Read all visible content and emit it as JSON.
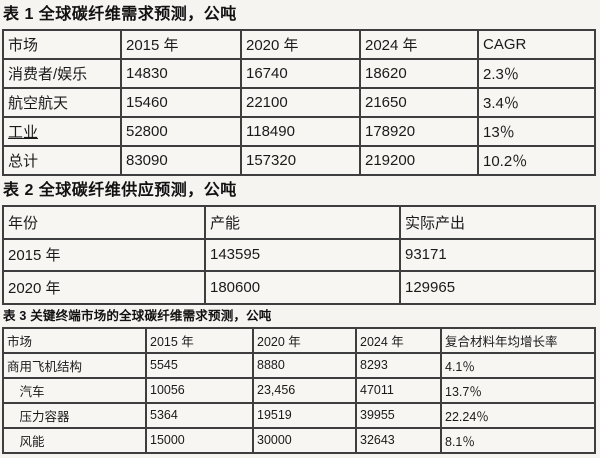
{
  "colors": {
    "background": "#f5f4f1",
    "table_border": "#3e3e3e",
    "text": "#161616"
  },
  "tables": [
    {
      "title": "表 1 全球碳纤维需求预测，公吨",
      "headers": [
        "市场",
        "2015 年",
        "2020 年",
        "2024 年",
        "CAGR"
      ],
      "rows": [
        [
          "消费者/娱乐",
          "14830",
          "16740",
          "18620",
          "2.3％"
        ],
        [
          "航空航天",
          "15460",
          "22100",
          "21650",
          "3.4％"
        ],
        [
          "工业",
          "52800",
          "118490",
          "178920",
          "13％"
        ],
        [
          "总计",
          "83090",
          "157320",
          "219200",
          "10.2％"
        ]
      ]
    },
    {
      "title": "表 2 全球碳纤维供应预测，公吨",
      "headers": [
        "年份",
        "产能",
        "实际产出"
      ],
      "rows": [
        [
          "2015 年",
          "143595",
          "93171"
        ],
        [
          "2020 年",
          "180600",
          "129965"
        ]
      ]
    },
    {
      "title": "表 3 关键终端市场的全球碳纤维需求预测，公吨",
      "headers": [
        "市场",
        "2015 年",
        "2020 年",
        "2024 年",
        "复合材料年均增长率"
      ],
      "rows": [
        [
          "商用飞机结构",
          "5545",
          "8880",
          "8293",
          "4.1％"
        ],
        [
          "　汽车",
          "10056",
          "23,456",
          "47011",
          "13.7％"
        ],
        [
          "　压力容器",
          "5364",
          "19519",
          "39955",
          "22.24％"
        ],
        [
          "　风能",
          "15000",
          "30000",
          "32643",
          "8.1％"
        ]
      ]
    }
  ]
}
